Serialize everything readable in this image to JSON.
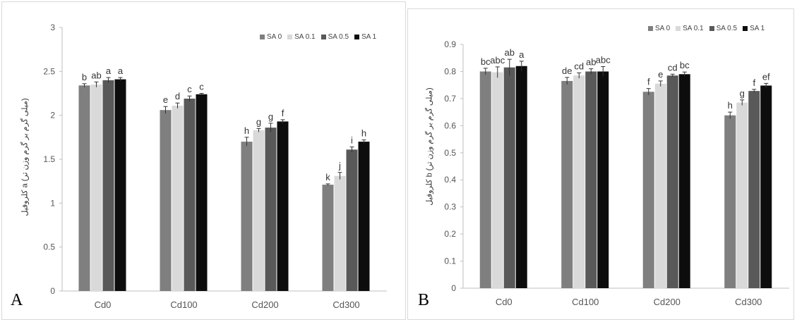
{
  "figure": {
    "colors": {
      "SA 0": "#7f7f7f",
      "SA 0.1": "#d9d9d9",
      "SA 0.5": "#595959",
      "SA 1": "#0d0d0d"
    }
  },
  "chart_data": [
    {
      "panel": "A",
      "type": "bar",
      "ylabel": "کلروفیل a (میلی گرم بر گرم وزن تر)",
      "categories": [
        "Cd0",
        "Cd100",
        "Cd200",
        "Cd300"
      ],
      "ylim": [
        0,
        3
      ],
      "yticks": [
        "0",
        "0.5",
        "1",
        "1.5",
        "2",
        "2.5",
        "3"
      ],
      "legend_position": "top-right",
      "grid": false,
      "series": [
        {
          "name": "SA 0",
          "values": [
            2.34,
            2.06,
            1.7,
            1.21
          ],
          "errors": [
            0.02,
            0.04,
            0.05,
            0.01
          ],
          "letters": [
            "b",
            "e",
            "h",
            "k"
          ]
        },
        {
          "name": "SA 0.1",
          "values": [
            2.35,
            2.11,
            1.83,
            1.31
          ],
          "errors": [
            0.03,
            0.03,
            0.02,
            0.04
          ],
          "letters": [
            "ab",
            "d",
            "g",
            "j"
          ]
        },
        {
          "name": "SA 0.5",
          "values": [
            2.4,
            2.19,
            1.86,
            1.61
          ],
          "errors": [
            0.03,
            0.03,
            0.05,
            0.03
          ],
          "letters": [
            "a",
            "c",
            "g",
            "i"
          ]
        },
        {
          "name": "SA 1",
          "values": [
            2.41,
            2.24,
            1.93,
            1.7
          ],
          "errors": [
            0.02,
            0.01,
            0.02,
            0.02
          ],
          "letters": [
            "a",
            "c",
            "f",
            "h"
          ]
        }
      ]
    },
    {
      "panel": "B",
      "type": "bar",
      "ylabel": "کلروفیل b (میلی گرم بر گرم وزن تر)",
      "categories": [
        "Cd0",
        "Cd100",
        "Cd200",
        "Cd300"
      ],
      "ylim": [
        0,
        0.9
      ],
      "yticks": [
        "0",
        "0.1",
        "0.2",
        "0.3",
        "0.4",
        "0.5",
        "0.6",
        "0.7",
        "0.8",
        "0.9"
      ],
      "legend_position": "top-right",
      "grid": false,
      "series": [
        {
          "name": "SA 0",
          "values": [
            0.8,
            0.765,
            0.725,
            0.638
          ],
          "errors": [
            0.012,
            0.013,
            0.012,
            0.012
          ],
          "letters": [
            "bc",
            "de",
            "f",
            "h"
          ]
        },
        {
          "name": "SA 0.1",
          "values": [
            0.797,
            0.785,
            0.755,
            0.685
          ],
          "errors": [
            0.02,
            0.01,
            0.01,
            0.01
          ],
          "letters": [
            "abc",
            "cd",
            "e",
            "g"
          ]
        },
        {
          "name": "SA 0.5",
          "values": [
            0.815,
            0.8,
            0.785,
            0.728
          ],
          "errors": [
            0.03,
            0.01,
            0.005,
            0.006
          ],
          "letters": [
            "ab",
            "ab",
            "cd",
            "f"
          ]
        },
        {
          "name": "SA 1",
          "values": [
            0.82,
            0.8,
            0.79,
            0.748
          ],
          "errors": [
            0.018,
            0.018,
            0.008,
            0.008
          ],
          "letters": [
            "a",
            "abc",
            "bc",
            "ef"
          ]
        }
      ]
    }
  ],
  "panels": [
    {
      "letter": "A"
    },
    {
      "letter": "B"
    }
  ]
}
